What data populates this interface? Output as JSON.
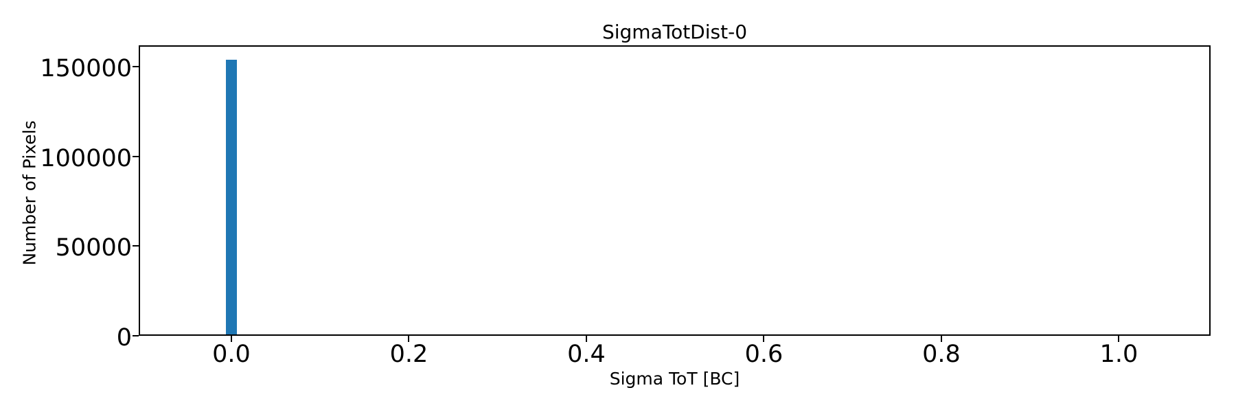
{
  "window": {
    "background": "#ffffff"
  },
  "chart_data": {
    "type": "bar",
    "variant": "histogram",
    "title": "SigmaTotDist-0",
    "xlabel": "Sigma ToT [BC]",
    "ylabel": "Number of Pixels",
    "xlim": [
      -0.1044,
      1.1033
    ],
    "ylim": [
      0,
      162000
    ],
    "x_ticks": [
      0,
      0.2,
      0.4,
      0.6,
      0.8,
      1.0
    ],
    "x_tick_labels": [
      "0.0",
      "0.2",
      "0.4",
      "0.6",
      "0.8",
      "1.0"
    ],
    "y_ticks": [
      0,
      50000,
      100000,
      150000
    ],
    "y_tick_labels": [
      "0",
      "50000",
      "100000",
      "150000"
    ],
    "bars": [
      {
        "x_center": 0.0,
        "width": 0.0124,
        "count": 153800
      }
    ],
    "bar_color": "#1f77b4",
    "axes_color": "#000000",
    "text_color": "#000000",
    "grid": false,
    "legend": null
  }
}
